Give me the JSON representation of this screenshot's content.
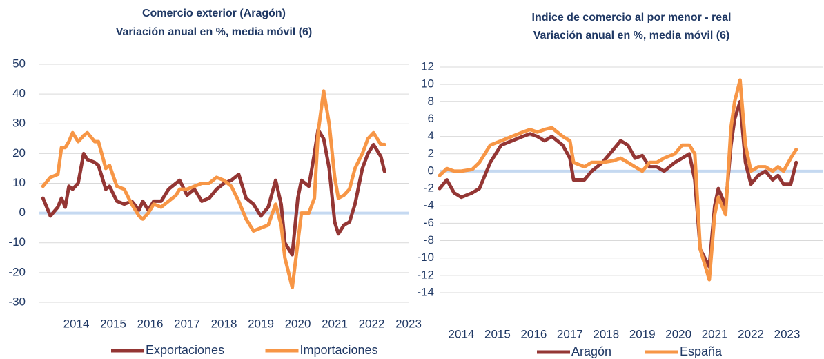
{
  "chart_data": [
    {
      "type": "line",
      "title": [
        "Comercio exterior (Aragón)",
        "Variación anual en %, media móvil (6)"
      ],
      "x": [
        2013.6,
        2013.8,
        2014.0,
        2014.1,
        2014.2,
        2014.3,
        2014.4,
        2014.55,
        2014.7,
        2014.8,
        2015.0,
        2015.1,
        2015.3,
        2015.4,
        2015.6,
        2015.8,
        2016.0,
        2016.2,
        2016.3,
        2016.45,
        2016.6,
        2016.8,
        2017.0,
        2017.2,
        2017.3,
        2017.5,
        2017.7,
        2017.9,
        2018.1,
        2018.3,
        2018.5,
        2018.7,
        2018.9,
        2019.1,
        2019.3,
        2019.5,
        2019.7,
        2019.9,
        2020.05,
        2020.15,
        2020.35,
        2020.5,
        2020.6,
        2020.8,
        2020.95,
        2021.05,
        2021.2,
        2021.35,
        2021.5,
        2021.6,
        2021.75,
        2021.9,
        2022.05,
        2022.25,
        2022.4,
        2022.55,
        2022.75,
        2022.85
      ],
      "series": [
        {
          "name": "Exportaciones",
          "color": "#943634",
          "values": [
            5,
            -1,
            2,
            5,
            2,
            9,
            8,
            10,
            20,
            18,
            17,
            16,
            8,
            9,
            4,
            3,
            4,
            1,
            4,
            1,
            4,
            4,
            8,
            10,
            11,
            6,
            8,
            4,
            5,
            8,
            10,
            11,
            13,
            5,
            3,
            -1,
            2,
            11,
            3,
            -10,
            -14,
            5,
            11,
            9,
            20,
            28,
            25,
            15,
            -3,
            -7,
            -4,
            -3,
            3,
            15,
            20,
            23,
            19,
            14
          ]
        },
        {
          "name": "Importaciones",
          "color": "#f79646",
          "values": [
            9,
            12,
            13,
            22,
            22,
            24,
            27,
            24,
            26,
            27,
            24,
            24,
            15,
            16,
            9,
            8,
            3,
            -1,
            -2,
            0,
            3,
            2,
            4,
            6,
            8,
            8,
            9,
            10,
            10,
            12,
            11,
            9,
            4,
            -2,
            -6,
            -5,
            -4,
            3,
            -4,
            -15,
            -25,
            -10,
            0,
            0,
            5,
            27,
            41,
            30,
            12,
            5,
            6,
            8,
            15,
            20,
            25,
            27,
            23,
            23
          ]
        }
      ],
      "xlim": [
        2013.5,
        2023.5
      ],
      "xticks": [
        {
          "value": 2014.5,
          "label": "2014"
        },
        {
          "value": 2015.5,
          "label": "2015"
        },
        {
          "value": 2016.5,
          "label": "2016"
        },
        {
          "value": 2017.5,
          "label": "2017"
        },
        {
          "value": 2018.5,
          "label": "2018"
        },
        {
          "value": 2019.5,
          "label": "2019"
        },
        {
          "value": 2020.5,
          "label": "2020"
        },
        {
          "value": 2021.5,
          "label": "2021"
        },
        {
          "value": 2022.5,
          "label": "2022"
        },
        {
          "value": 2023.5,
          "label": "2023"
        }
      ],
      "ylim": [
        -30,
        50
      ],
      "yticks": [
        -30,
        -20,
        -10,
        0,
        10,
        20,
        30,
        40,
        50
      ],
      "grid": true,
      "legend": "bottom"
    },
    {
      "type": "line",
      "title": [
        "Indice de comercio al por menor - real",
        "Variación anual en %, media móvil (6)"
      ],
      "x": [
        2012.9,
        2013.1,
        2013.3,
        2013.5,
        2013.8,
        2014.0,
        2014.3,
        2014.6,
        2014.9,
        2015.2,
        2015.4,
        2015.6,
        2015.8,
        2016.0,
        2016.3,
        2016.5,
        2016.6,
        2016.9,
        2017.1,
        2017.4,
        2017.7,
        2017.9,
        2018.1,
        2018.3,
        2018.5,
        2018.7,
        2018.9,
        2019.1,
        2019.4,
        2019.6,
        2019.8,
        2019.95,
        2020.1,
        2020.35,
        2020.5,
        2020.6,
        2020.8,
        2020.95,
        2021.05,
        2021.2,
        2021.35,
        2021.5,
        2021.7,
        2021.9,
        2022.1,
        2022.25,
        2022.4,
        2022.6,
        2022.75
      ],
      "series": [
        {
          "name": "Aragón",
          "color": "#943634",
          "values": [
            -2,
            -1,
            -2.5,
            -3,
            -2.5,
            -2,
            1,
            3,
            3.5,
            4,
            4.3,
            4,
            3.5,
            4,
            3,
            1.5,
            -1,
            -1,
            0,
            1,
            2.5,
            3.5,
            3,
            1.5,
            1.8,
            0.5,
            0.5,
            0,
            1,
            1.5,
            2,
            -1,
            -9,
            -11,
            -4,
            -2,
            -4,
            3,
            6,
            8,
            1,
            -1.5,
            -0.5,
            0,
            -1,
            -0.5,
            -1.5,
            -1.5,
            1
          ]
        },
        {
          "name": "España",
          "color": "#f79646",
          "values": [
            -0.5,
            0.3,
            0,
            0,
            0.2,
            1,
            3,
            3.5,
            4,
            4.5,
            4.8,
            4.5,
            4.8,
            5,
            4,
            3.5,
            1,
            0.5,
            1,
            1,
            1.2,
            1.5,
            1,
            0.5,
            0,
            1,
            1,
            1.5,
            2,
            3,
            3,
            2,
            -9,
            -12.5,
            -5,
            -3,
            -5,
            5,
            8,
            10.5,
            3,
            0,
            0.5,
            0.5,
            0,
            0.5,
            0,
            1.5,
            2.5
          ]
        }
      ],
      "xlim": [
        2012.9,
        2023.5
      ],
      "xticks": [
        {
          "value": 2013.5,
          "label": "2014"
        },
        {
          "value": 2014.5,
          "label": "2015"
        },
        {
          "value": 2015.5,
          "label": "2016"
        },
        {
          "value": 2016.5,
          "label": "2017"
        },
        {
          "value": 2017.5,
          "label": "2018"
        },
        {
          "value": 2018.5,
          "label": "2019"
        },
        {
          "value": 2019.5,
          "label": "2020"
        },
        {
          "value": 2020.5,
          "label": "2021"
        },
        {
          "value": 2021.5,
          "label": "2022"
        },
        {
          "value": 2022.5,
          "label": "2023"
        }
      ],
      "ylim": [
        -14,
        12
      ],
      "yticks": [
        -14,
        -12,
        -10,
        -8,
        -6,
        -4,
        -2,
        0,
        2,
        4,
        6,
        8,
        10,
        12
      ],
      "grid": true,
      "legend": "bottom"
    }
  ]
}
